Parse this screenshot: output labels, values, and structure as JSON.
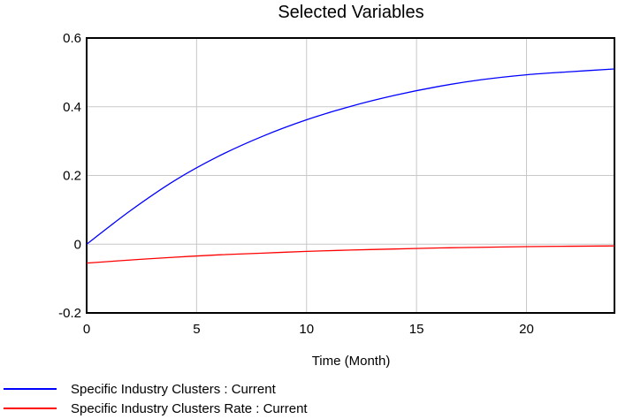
{
  "chart_data": {
    "type": "line",
    "title": "Selected Variables",
    "xlabel": "Time (Month)",
    "ylabel": "",
    "xlim": [
      0,
      24
    ],
    "ylim": [
      -0.2,
      0.6
    ],
    "xticks": [
      0,
      5,
      10,
      15,
      20
    ],
    "yticks": [
      -0.2,
      0,
      0.2,
      0.4,
      0.6
    ],
    "xtick_labels": [
      "0",
      "5",
      "10",
      "15",
      "20"
    ],
    "ytick_labels": [
      "-0.2",
      "0",
      "0.2",
      "0.4",
      "0.6"
    ],
    "grid": true,
    "legend_position": "bottom",
    "x": [
      0,
      2,
      4,
      6,
      8,
      10,
      12,
      14,
      16,
      18,
      20,
      22,
      24
    ],
    "series": [
      {
        "name": "Specific Industry Clusters : Current",
        "color": "#0000ff",
        "values": [
          0.0,
          0.098,
          0.185,
          0.256,
          0.314,
          0.362,
          0.401,
          0.433,
          0.459,
          0.479,
          0.493,
          0.502,
          0.51
        ]
      },
      {
        "name": "Specific Industry Clusters Rate : Current",
        "color": "#ff0000",
        "values": [
          -0.055,
          -0.046,
          -0.038,
          -0.031,
          -0.026,
          -0.021,
          -0.017,
          -0.014,
          -0.011,
          -0.009,
          -0.007,
          -0.006,
          -0.005
        ]
      }
    ]
  }
}
